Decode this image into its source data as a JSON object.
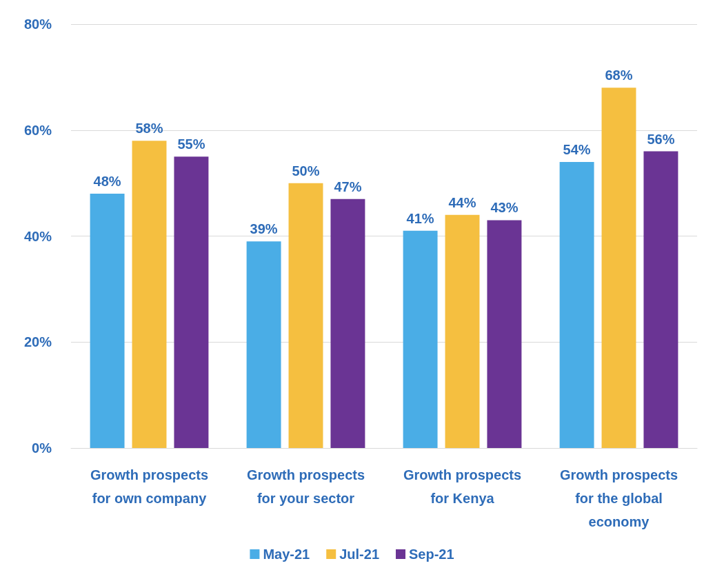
{
  "chart_data": {
    "type": "bar",
    "categories": [
      "Growth prospects\nfor own company",
      "Growth prospects\nfor your sector",
      "Growth prospects\nfor Kenya",
      "Growth prospects\nfor the global\neconomy"
    ],
    "series": [
      {
        "name": "May-21",
        "color": "#4aade6",
        "values": [
          48,
          39,
          41,
          54
        ],
        "value_labels": [
          "48%",
          "39%",
          "41%",
          "54%"
        ]
      },
      {
        "name": "Jul-21",
        "color": "#f5bf40",
        "values": [
          58,
          50,
          44,
          68
        ],
        "value_labels": [
          "58%",
          "50%",
          "44%",
          "68%"
        ]
      },
      {
        "name": "Sep-21",
        "color": "#6a3494",
        "values": [
          55,
          47,
          43,
          56
        ],
        "value_labels": [
          "55%",
          "47%",
          "43%",
          "56%"
        ]
      }
    ],
    "ylim": [
      0,
      80
    ],
    "yticks": [
      {
        "value": 0,
        "label": "0%"
      },
      {
        "value": 20,
        "label": "20%"
      },
      {
        "value": 40,
        "label": "40%"
      },
      {
        "value": 60,
        "label": "60%"
      },
      {
        "value": 80,
        "label": "80%"
      }
    ],
    "grid": true,
    "legend": "bottom"
  }
}
